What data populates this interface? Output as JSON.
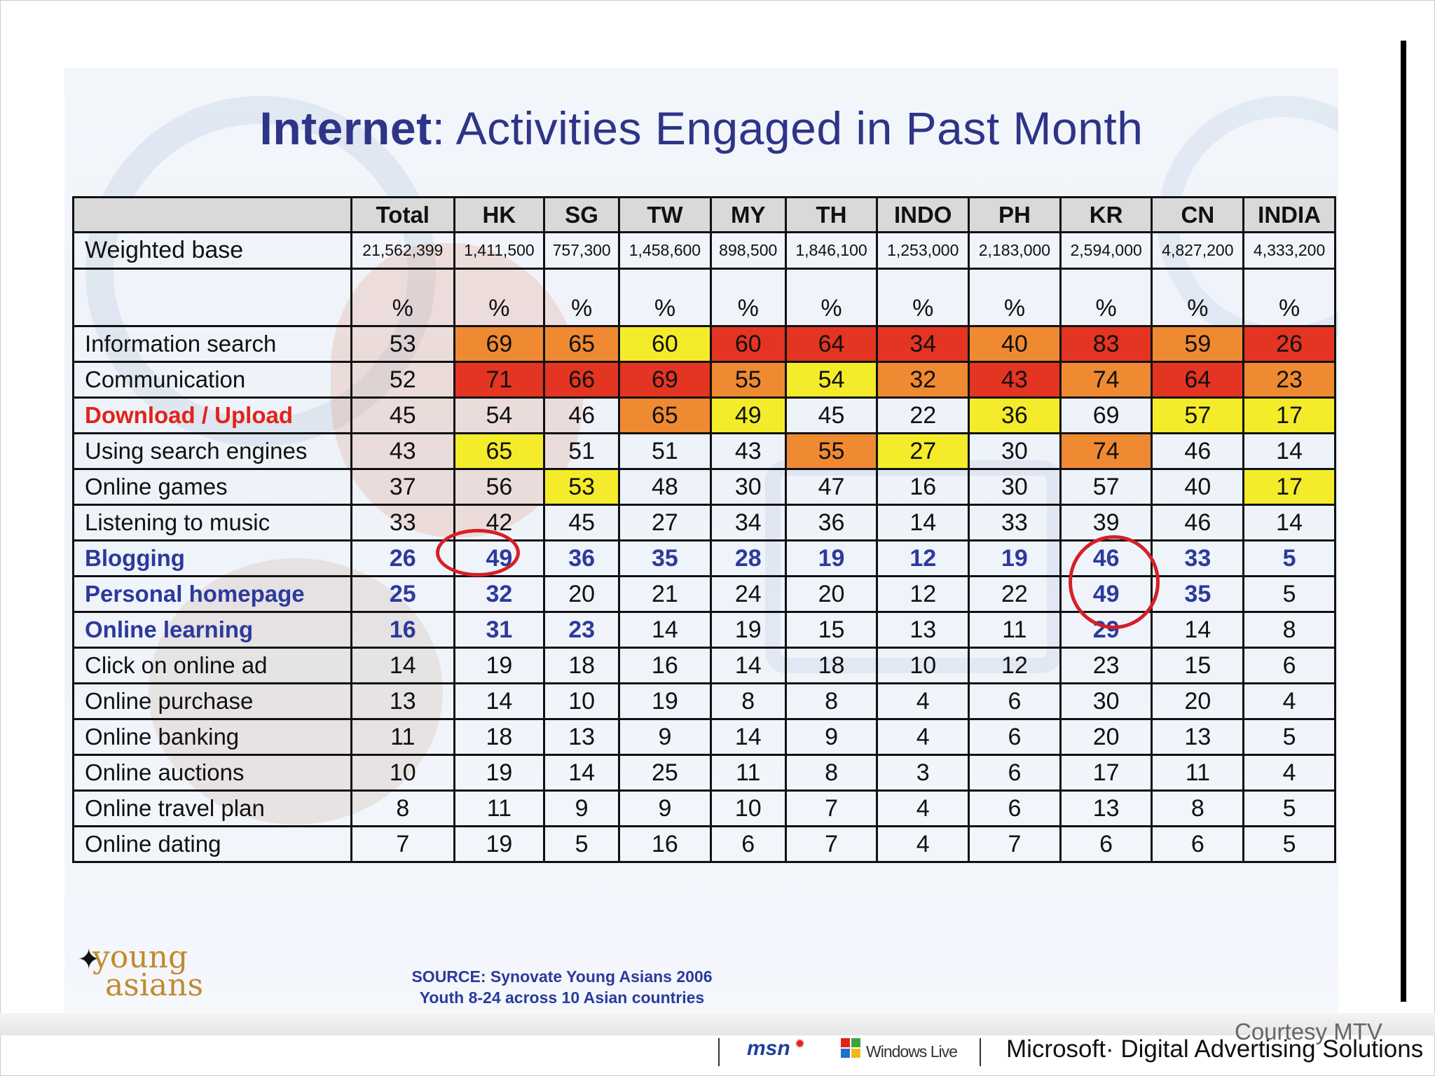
{
  "title": {
    "bold": "Internet",
    "rest": ": Activities Engaged in Past Month"
  },
  "table": {
    "columns": [
      "Total",
      "HK",
      "SG",
      "TW",
      "MY",
      "TH",
      "INDO",
      "PH",
      "KR",
      "CN",
      "INDIA"
    ],
    "weighted_base_label": "Weighted base",
    "weighted_base": [
      "21,562,399",
      "1,411,500",
      "757,300",
      "1,458,600",
      "898,500",
      "1,846,100",
      "1,253,000",
      "2,183,000",
      "2,594,000",
      "4,827,200",
      "4,333,200"
    ],
    "percent_symbol": "%",
    "rows": [
      {
        "label": "Information search",
        "style": "normal",
        "values": [
          "53",
          "69",
          "65",
          "60",
          "60",
          "64",
          "34",
          "40",
          "83",
          "59",
          "26"
        ],
        "colors": [
          "",
          "org",
          "org",
          "yel",
          "red",
          "red",
          "red",
          "org",
          "red",
          "org",
          "red"
        ]
      },
      {
        "label": "Communication",
        "style": "normal",
        "values": [
          "52",
          "71",
          "66",
          "69",
          "55",
          "54",
          "32",
          "43",
          "74",
          "64",
          "23"
        ],
        "colors": [
          "",
          "red",
          "red",
          "red",
          "org",
          "yel",
          "org",
          "red",
          "org",
          "red",
          "org"
        ]
      },
      {
        "label": "Download / Upload",
        "style": "red",
        "values": [
          "45",
          "54",
          "46",
          "65",
          "49",
          "45",
          "22",
          "36",
          "69",
          "57",
          "17"
        ],
        "colors": [
          "",
          "",
          "",
          "org",
          "yel",
          "",
          "",
          "yel",
          "",
          "yel",
          "yel"
        ]
      },
      {
        "label": "Using search engines",
        "style": "normal",
        "values": [
          "43",
          "65",
          "51",
          "51",
          "43",
          "55",
          "27",
          "30",
          "74",
          "46",
          "14"
        ],
        "colors": [
          "",
          "yel",
          "",
          "",
          "",
          "org",
          "yel",
          "",
          "org",
          "",
          ""
        ]
      },
      {
        "label": "Online games",
        "style": "normal",
        "values": [
          "37",
          "56",
          "53",
          "48",
          "30",
          "47",
          "16",
          "30",
          "57",
          "40",
          "17"
        ],
        "colors": [
          "",
          "",
          "yel",
          "",
          "",
          "",
          "",
          "",
          "",
          "",
          "yel"
        ]
      },
      {
        "label": "Listening to music",
        "style": "normal",
        "values": [
          "33",
          "42",
          "45",
          "27",
          "34",
          "36",
          "14",
          "33",
          "39",
          "46",
          "14"
        ],
        "colors": [
          "",
          "",
          "",
          "",
          "",
          "",
          "",
          "",
          "",
          "",
          ""
        ]
      },
      {
        "label": "Blogging",
        "style": "blue",
        "values": [
          "26",
          "49",
          "36",
          "35",
          "28",
          "19",
          "12",
          "19",
          "46",
          "33",
          "5"
        ],
        "colors": [
          "",
          "",
          "",
          "",
          "",
          "",
          "",
          "",
          "",
          "",
          ""
        ]
      },
      {
        "label": "Personal homepage",
        "style": "blue",
        "values": [
          "25",
          "32",
          "20",
          "21",
          "24",
          "20",
          "12",
          "22",
          "49",
          "35",
          "5"
        ],
        "colors": [
          "",
          "",
          "",
          "",
          "",
          "",
          "",
          "",
          "",
          "",
          ""
        ]
      },
      {
        "label": "Online learning",
        "style": "blue",
        "values": [
          "16",
          "31",
          "23",
          "14",
          "19",
          "15",
          "13",
          "11",
          "29",
          "14",
          "8"
        ],
        "colors": [
          "",
          "",
          "",
          "",
          "",
          "",
          "",
          "",
          "",
          "",
          ""
        ]
      },
      {
        "label": "Click on online ad",
        "style": "normal",
        "values": [
          "14",
          "19",
          "18",
          "16",
          "14",
          "18",
          "10",
          "12",
          "23",
          "15",
          "6"
        ],
        "colors": [
          "",
          "",
          "",
          "",
          "",
          "",
          "",
          "",
          "",
          "",
          ""
        ]
      },
      {
        "label": "Online purchase",
        "style": "normal",
        "values": [
          "13",
          "14",
          "10",
          "19",
          "8",
          "8",
          "4",
          "6",
          "30",
          "20",
          "4"
        ],
        "colors": [
          "",
          "",
          "",
          "",
          "",
          "",
          "",
          "",
          "",
          "",
          ""
        ]
      },
      {
        "label": "Online banking",
        "style": "normal",
        "values": [
          "11",
          "18",
          "13",
          "9",
          "14",
          "9",
          "4",
          "6",
          "20",
          "13",
          "5"
        ],
        "colors": [
          "",
          "",
          "",
          "",
          "",
          "",
          "",
          "",
          "",
          "",
          ""
        ]
      },
      {
        "label": "Online auctions",
        "style": "normal",
        "values": [
          "10",
          "19",
          "14",
          "25",
          "11",
          "8",
          "3",
          "6",
          "17",
          "11",
          "4"
        ],
        "colors": [
          "",
          "",
          "",
          "",
          "",
          "",
          "",
          "",
          "",
          "",
          ""
        ]
      },
      {
        "label": "Online travel plan",
        "style": "normal",
        "values": [
          "8",
          "11",
          "9",
          "9",
          "10",
          "7",
          "4",
          "6",
          "13",
          "8",
          "5"
        ],
        "colors": [
          "",
          "",
          "",
          "",
          "",
          "",
          "",
          "",
          "",
          "",
          ""
        ]
      },
      {
        "label": "Online dating",
        "style": "normal",
        "values": [
          "7",
          "19",
          "5",
          "16",
          "6",
          "7",
          "4",
          "7",
          "6",
          "6",
          "5"
        ],
        "colors": [
          "",
          "",
          "",
          "",
          "",
          "",
          "",
          "",
          "",
          "",
          ""
        ]
      }
    ],
    "blue_cells": {
      "Blogging": [
        0,
        1,
        2,
        3,
        4,
        5,
        6,
        7,
        8,
        9,
        10
      ],
      "Personal homepage": [
        0,
        1,
        8,
        9
      ],
      "Online learning": [
        0,
        1,
        2,
        8
      ]
    }
  },
  "logo": {
    "top": "young",
    "bottom": "asians"
  },
  "source": {
    "line1": "SOURCE: Synovate Young Asians 2006",
    "line2": "Youth 8-24 across 10 Asian countries"
  },
  "footer": {
    "msn": "msn",
    "windows_live": "Windows Live",
    "microsoft": "Microsoft· Digital Advertising Solutions",
    "courtesy": "Courtesy MTV"
  },
  "colors": {
    "red": "#e43422",
    "orange": "#ef8a32",
    "yellow": "#f4ec2a",
    "title_blue": "#2e3487",
    "highlight_blue": "#2c3a9c",
    "circle_red": "#d42027"
  }
}
